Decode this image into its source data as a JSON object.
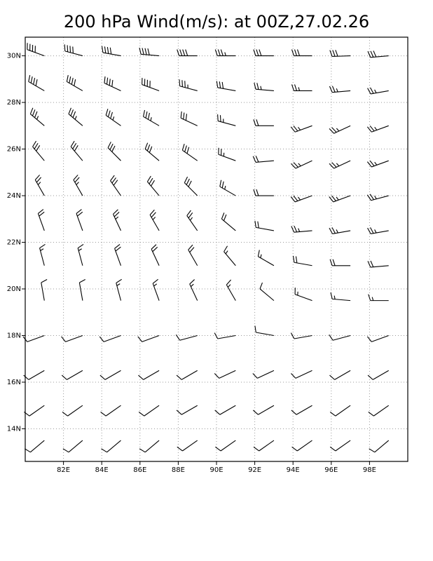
{
  "chart_data": {
    "type": "barbs",
    "title": "200 hPa Wind(m/s): at 00Z,27.02.26",
    "xlim": [
      80,
      100
    ],
    "ylim": [
      12.6,
      30.8
    ],
    "xticks": [
      {
        "value": 82,
        "label": "82E"
      },
      {
        "value": 84,
        "label": "84E"
      },
      {
        "value": 86,
        "label": "86E"
      },
      {
        "value": 88,
        "label": "88E"
      },
      {
        "value": 90,
        "label": "90E"
      },
      {
        "value": 92,
        "label": "92E"
      },
      {
        "value": 94,
        "label": "94E"
      },
      {
        "value": 96,
        "label": "96E"
      },
      {
        "value": 98,
        "label": "98E"
      }
    ],
    "yticks": [
      {
        "value": 14,
        "label": "14N"
      },
      {
        "value": 16,
        "label": "16N"
      },
      {
        "value": 18,
        "label": "18N"
      },
      {
        "value": 20,
        "label": "20N"
      },
      {
        "value": 22,
        "label": "22N"
      },
      {
        "value": 24,
        "label": "24N"
      },
      {
        "value": 26,
        "label": "26N"
      },
      {
        "value": 28,
        "label": "28N"
      },
      {
        "value": 30,
        "label": "30N"
      }
    ],
    "grid": true,
    "color": "#000000",
    "lon": [
      81,
      83,
      85,
      87,
      89,
      91,
      93,
      95,
      97,
      99
    ],
    "lat": [
      30,
      28.5,
      27,
      25.5,
      24,
      22.5,
      21,
      19.5,
      18,
      16.5,
      15,
      13.5
    ],
    "direction": [
      [
        290,
        285,
        280,
        275,
        270,
        270,
        270,
        270,
        268,
        265
      ],
      [
        300,
        300,
        295,
        290,
        285,
        280,
        275,
        270,
        265,
        260
      ],
      [
        310,
        310,
        305,
        300,
        295,
        285,
        270,
        250,
        245,
        250
      ],
      [
        320,
        320,
        315,
        310,
        305,
        290,
        265,
        245,
        245,
        250
      ],
      [
        330,
        330,
        325,
        320,
        315,
        300,
        270,
        250,
        250,
        255
      ],
      [
        340,
        340,
        335,
        330,
        325,
        310,
        280,
        265,
        260,
        260
      ],
      [
        345,
        345,
        340,
        335,
        330,
        320,
        300,
        280,
        270,
        265
      ],
      [
        350,
        350,
        345,
        340,
        335,
        330,
        310,
        290,
        275,
        270
      ],
      [
        250,
        250,
        250,
        250,
        255,
        260,
        280,
        260,
        255,
        250
      ],
      [
        240,
        240,
        240,
        240,
        240,
        245,
        245,
        245,
        240,
        240
      ],
      [
        235,
        235,
        235,
        235,
        240,
        240,
        240,
        240,
        235,
        235
      ],
      [
        230,
        230,
        230,
        230,
        235,
        235,
        235,
        235,
        235,
        230
      ]
    ],
    "speed": [
      [
        40,
        40,
        40,
        40,
        40,
        35,
        30,
        30,
        30,
        30
      ],
      [
        40,
        40,
        40,
        40,
        35,
        30,
        25,
        25,
        25,
        25
      ],
      [
        35,
        35,
        35,
        35,
        30,
        25,
        20,
        25,
        25,
        25
      ],
      [
        30,
        30,
        30,
        30,
        30,
        25,
        20,
        25,
        25,
        25
      ],
      [
        25,
        25,
        30,
        30,
        30,
        25,
        20,
        25,
        25,
        25
      ],
      [
        20,
        20,
        25,
        25,
        25,
        20,
        20,
        25,
        25,
        25
      ],
      [
        15,
        15,
        20,
        20,
        20,
        15,
        15,
        20,
        20,
        20
      ],
      [
        10,
        10,
        15,
        15,
        15,
        15,
        10,
        15,
        15,
        15
      ],
      [
        10,
        10,
        10,
        10,
        10,
        10,
        10,
        10,
        10,
        10
      ],
      [
        10,
        10,
        10,
        10,
        10,
        10,
        10,
        10,
        10,
        10
      ],
      [
        10,
        10,
        10,
        10,
        10,
        10,
        10,
        10,
        10,
        10
      ],
      [
        10,
        10,
        10,
        10,
        10,
        10,
        10,
        10,
        10,
        10
      ]
    ]
  }
}
